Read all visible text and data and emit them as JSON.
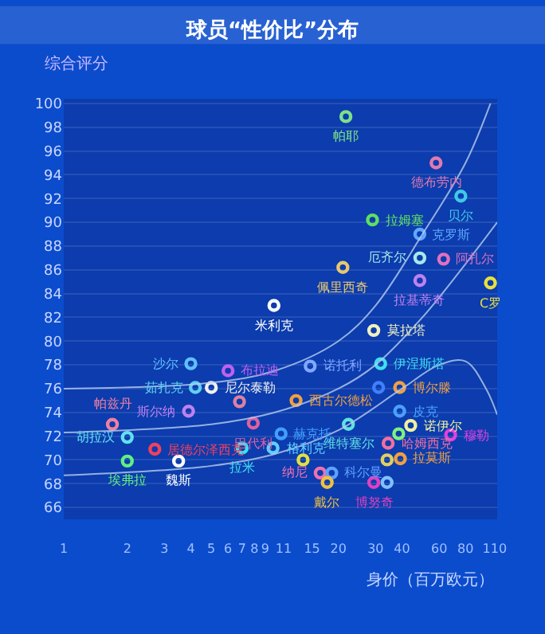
{
  "chart_data": {
    "type": "scatter",
    "title": "球员“性价比”分布",
    "xlabel": "身价（百万欧元）",
    "ylabel": "综合评分",
    "log": "x",
    "grid": "y",
    "marker": "circle",
    "xlim": [
      1,
      113
    ],
    "xticks": [
      1,
      2,
      3,
      4,
      5,
      6,
      7,
      8,
      9,
      11,
      15,
      20,
      30,
      40,
      60,
      80,
      110
    ],
    "ylim": [
      65,
      100.4
    ],
    "yticks": [
      66,
      68,
      70,
      72,
      74,
      76,
      78,
      80,
      82,
      84,
      86,
      88,
      90,
      92,
      94,
      96,
      98,
      100
    ],
    "series": [
      {
        "x": [
          21.7,
          58,
          76,
          29,
          48.6,
          48.6,
          63,
          21,
          48.6,
          105,
          9.9,
          29.4,
          14.7,
          31.7,
          39,
          12.6,
          39,
          44,
          68,
          22.3,
          10.7,
          9.8,
          34.4,
          16.4,
          18.6,
          39.3,
          17.7,
          29.4,
          4.0,
          6.0,
          4.2,
          5.0,
          3.9,
          1.7,
          2.0,
          7.9,
          2.7,
          7.0,
          2.0,
          3.5,
          31,
          38.6,
          13.6,
          34,
          34,
          6.8
        ],
        "values": [
          98.9,
          95.0,
          92.2,
          90.2,
          89.0,
          87.0,
          86.9,
          86.2,
          85.1,
          84.9,
          83.0,
          80.9,
          77.9,
          78.1,
          76.1,
          75.0,
          74.1,
          72.9,
          72.1,
          73.0,
          72.2,
          71.0,
          71.4,
          68.9,
          68.9,
          70.1,
          68.1,
          68.1,
          78.1,
          77.5,
          76.1,
          76.1,
          74.1,
          73.0,
          71.9,
          73.1,
          70.9,
          71.0,
          69.9,
          69.9,
          76.1,
          72.2,
          70.0,
          70.0,
          68.1,
          74.9
        ],
        "colors": [
          "#7ee08a",
          "#e07ab0",
          "#40c8e8",
          "#60e060",
          "#60a8ff",
          "#a8e8e8",
          "#e070c0",
          "#e8c870",
          "#c080f0",
          "#e8e040",
          "#ffffff",
          "#f0f0c0",
          "#80a8ff",
          "#40e0f0",
          "#f0a040",
          "#f0a040",
          "#4aa0ff",
          "#f0f0a0",
          "#e040e0",
          "#60e0e0",
          "#40a0ff",
          "#60d0ff",
          "#f070a0",
          "#f070b0",
          "#60a0ff",
          "#f0a040",
          "#f0c040",
          "#e040c0",
          "#60c0ff",
          "#c060f0",
          "#60d0f0",
          "#f0f0f0",
          "#c080f0",
          "#f080a0",
          "#60e0f0",
          "#e060a0",
          "#f04060",
          "#40e0f0",
          "#60f080",
          "#ffffff",
          "#4080ff",
          "#80f080",
          "#e0e040",
          "#e0d060",
          "#80c0ff",
          "#e080a0"
        ]
      },
      {
        "type": "line",
        "marker": "none",
        "color": "#b8cdf0",
        "x": [
          1,
          5,
          10,
          20,
          30,
          50,
          80,
          105
        ],
        "values": [
          76,
          76.5,
          77.5,
          80,
          83,
          89,
          95,
          100
        ]
      },
      {
        "type": "line",
        "marker": "none",
        "color": "#b8cdf0",
        "x": [
          1,
          5,
          10,
          20,
          30,
          50,
          80,
          113
        ],
        "values": [
          72.3,
          73,
          74,
          76,
          78,
          82,
          86.5,
          90
        ]
      },
      {
        "type": "line",
        "marker": "none",
        "color": "#b8cdf0",
        "x": [
          1,
          5,
          10,
          20,
          40,
          60,
          80,
          100,
          113
        ],
        "values": [
          68.7,
          69.5,
          70.5,
          72.5,
          76,
          78,
          78.3,
          76,
          73.8
        ]
      }
    ],
    "annotations": [
      {
        "text": "帕耶",
        "x": 21.7,
        "y": 98.9
      },
      {
        "text": "德布劳内",
        "x": 58,
        "y": 95.0
      },
      {
        "text": "贝尔",
        "x": 76,
        "y": 92.2
      },
      {
        "text": "拉姆塞",
        "x": 29,
        "y": 90.2
      },
      {
        "text": "克罗斯",
        "x": 48.6,
        "y": 89.0
      },
      {
        "text": "厄齐尔",
        "x": 48.6,
        "y": 87.0
      },
      {
        "text": "阿扎尔",
        "x": 63,
        "y": 86.9
      },
      {
        "text": "佩里西奇",
        "x": 21,
        "y": 86.2
      },
      {
        "text": "拉基蒂奇",
        "x": 48.6,
        "y": 85.1
      },
      {
        "text": "C罗",
        "x": 105,
        "y": 84.9
      },
      {
        "text": "米利克",
        "x": 9.9,
        "y": 83.0
      },
      {
        "text": "莫拉塔",
        "x": 29.4,
        "y": 80.9
      },
      {
        "text": "诺托利",
        "x": 14.7,
        "y": 77.9
      },
      {
        "text": "伊涅斯塔",
        "x": 31.7,
        "y": 78.1
      },
      {
        "text": "博尔滕",
        "x": 39,
        "y": 76.1
      },
      {
        "text": "西古尔德松",
        "x": 12.6,
        "y": 75.0
      },
      {
        "text": "皮克",
        "x": 39,
        "y": 74.1
      },
      {
        "text": "诺伊尔",
        "x": 44,
        "y": 72.9
      },
      {
        "text": "穆勒",
        "x": 68,
        "y": 72.1
      },
      {
        "text": "维特塞尔",
        "x": 22.3,
        "y": 73.0
      },
      {
        "text": "赫克托",
        "x": 10.7,
        "y": 72.2
      },
      {
        "text": "格利克",
        "x": 9.8,
        "y": 71.0
      },
      {
        "text": "哈姆西克",
        "x": 34.4,
        "y": 71.4
      },
      {
        "text": "纳尼",
        "x": 16.4,
        "y": 68.9
      },
      {
        "text": "科尔曼",
        "x": 18.6,
        "y": 68.9
      },
      {
        "text": "拉莫斯",
        "x": 39.3,
        "y": 70.1
      },
      {
        "text": "戴尔",
        "x": 17.7,
        "y": 68.1
      },
      {
        "text": "博努奇",
        "x": 29.4,
        "y": 68.1
      },
      {
        "text": "沙尔",
        "x": 4.0,
        "y": 78.1
      },
      {
        "text": "布拉迪",
        "x": 6.0,
        "y": 77.5
      },
      {
        "text": "茹扎克",
        "x": 4.2,
        "y": 76.1
      },
      {
        "text": "尼尔泰勒",
        "x": 5.0,
        "y": 76.1
      },
      {
        "text": "斯尔纳",
        "x": 3.9,
        "y": 74.1
      },
      {
        "text": "帕兹丹",
        "x": 1.7,
        "y": 73.0
      },
      {
        "text": "胡拉汉",
        "x": 2.0,
        "y": 71.9
      },
      {
        "text": "巴代利",
        "x": 7.9,
        "y": 73.1
      },
      {
        "text": "居德尔泽西克",
        "x": 2.7,
        "y": 70.9
      },
      {
        "text": "拉米",
        "x": 7.0,
        "y": 71.0
      },
      {
        "text": "埃弗拉",
        "x": 2.0,
        "y": 69.9
      },
      {
        "text": "魏斯",
        "x": 3.5,
        "y": 69.9
      }
    ]
  }
}
